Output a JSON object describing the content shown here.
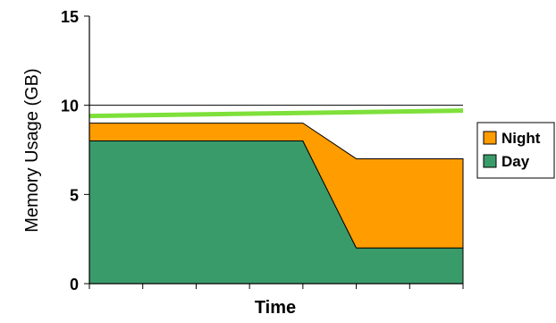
{
  "chart_data": {
    "type": "area",
    "xlabel": "Time",
    "ylabel": "Memory Usage (GB)",
    "ylim": [
      0,
      15
    ],
    "yticks": [
      0,
      5,
      10,
      15
    ],
    "grid": "horizontal line at 10",
    "legend_position": "right",
    "x": [
      0,
      1,
      2,
      3,
      4,
      5,
      6,
      7
    ],
    "series": [
      {
        "name": "Day",
        "color": "#3a9b6a",
        "values": [
          8,
          8,
          8,
          8,
          8,
          2,
          2,
          2
        ]
      },
      {
        "name": "Night",
        "color": "#ff9c00",
        "values": [
          1,
          1,
          1,
          1,
          1,
          5,
          5,
          5
        ]
      }
    ],
    "threshold_line": {
      "color": "#7ee03a",
      "start": 9.4,
      "end": 9.7
    }
  }
}
